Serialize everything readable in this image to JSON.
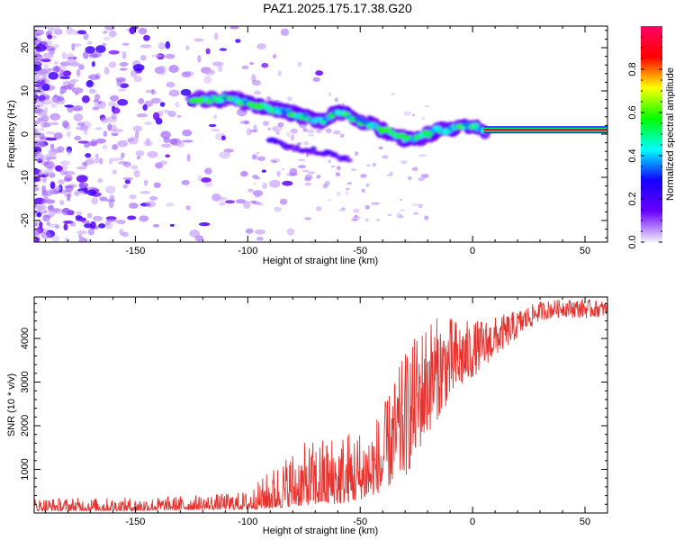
{
  "title": "PAZ1.2025.175.17.38.G20",
  "colors": {
    "snr_line": "#e8322e",
    "spectrogram_noise": "#8a4ff0",
    "colorbar_stops": [
      "#f2f0fb",
      "#6a00ff",
      "#1400ff",
      "#00ffff",
      "#00ff00",
      "#ffff00",
      "#ff0000",
      "#ff0066"
    ]
  },
  "chart_data": [
    {
      "type": "heatmap",
      "title": "PAZ1.2025.175.17.38.G20",
      "xlabel": "Height of straight line (km)",
      "ylabel": "Frequency (Hz)",
      "xlim": [
        -195,
        60
      ],
      "ylim": [
        -25,
        25
      ],
      "xticks": [
        -150,
        -100,
        -50,
        0,
        50
      ],
      "yticks": [
        -20,
        -10,
        0,
        10,
        20
      ],
      "colorbar": {
        "label": "Normalized spectral amplitude",
        "range": [
          0,
          1
        ],
        "ticks": [
          0.0,
          0.2,
          0.4,
          0.6,
          0.8
        ]
      },
      "ridge": {
        "description_points": [
          {
            "x": -125,
            "y": 8
          },
          {
            "x": -115,
            "y": 8
          },
          {
            "x": -105,
            "y": 8
          },
          {
            "x": -98,
            "y": 7
          },
          {
            "x": -90,
            "y": 6
          },
          {
            "x": -82,
            "y": 5
          },
          {
            "x": -75,
            "y": 4
          },
          {
            "x": -68,
            "y": 3
          },
          {
            "x": -60,
            "y": 5
          },
          {
            "x": -55,
            "y": 4
          },
          {
            "x": -50,
            "y": 3
          },
          {
            "x": -45,
            "y": 2
          },
          {
            "x": -40,
            "y": 1
          },
          {
            "x": -35,
            "y": 0
          },
          {
            "x": -30,
            "y": -1
          },
          {
            "x": -25,
            "y": -1
          },
          {
            "x": -20,
            "y": 0
          },
          {
            "x": -15,
            "y": 1
          },
          {
            "x": -10,
            "y": 1
          },
          {
            "x": -5,
            "y": 2
          },
          {
            "x": 0,
            "y": 2
          },
          {
            "x": 5,
            "y": 1
          },
          {
            "x": 20,
            "y": 1
          },
          {
            "x": 40,
            "y": 1
          },
          {
            "x": 60,
            "y": 1
          }
        ],
        "branch_points": [
          {
            "x": -90,
            "y": -1
          },
          {
            "x": -80,
            "y": -3
          },
          {
            "x": -70,
            "y": -4
          },
          {
            "x": -60,
            "y": -5
          },
          {
            "x": -55,
            "y": -6
          }
        ]
      }
    },
    {
      "type": "line",
      "xlabel": "Height of straight line (km)",
      "ylabel": "SNR (10 * v/v)",
      "xlim": [
        -195,
        60
      ],
      "ylim": [
        0,
        4950
      ],
      "xticks": [
        -150,
        -100,
        -50,
        0,
        50
      ],
      "yticks": [
        1000,
        2000,
        3000,
        4000
      ],
      "envelope": [
        {
          "x": -195,
          "low": 50,
          "high": 350
        },
        {
          "x": -150,
          "low": 50,
          "high": 350
        },
        {
          "x": -110,
          "low": 80,
          "high": 450
        },
        {
          "x": -100,
          "low": 80,
          "high": 500
        },
        {
          "x": -90,
          "low": 100,
          "high": 1000
        },
        {
          "x": -80,
          "low": 150,
          "high": 1500
        },
        {
          "x": -70,
          "low": 200,
          "high": 1700
        },
        {
          "x": -60,
          "low": 200,
          "high": 1900
        },
        {
          "x": -50,
          "low": 300,
          "high": 2000
        },
        {
          "x": -40,
          "low": 500,
          "high": 2400
        },
        {
          "x": -30,
          "low": 800,
          "high": 3700
        },
        {
          "x": -20,
          "low": 1800,
          "high": 4500
        },
        {
          "x": -10,
          "low": 2600,
          "high": 4500
        },
        {
          "x": 0,
          "low": 3100,
          "high": 4400
        },
        {
          "x": 10,
          "low": 3600,
          "high": 4500
        },
        {
          "x": 20,
          "low": 4000,
          "high": 4650
        },
        {
          "x": 30,
          "low": 4400,
          "high": 4850
        },
        {
          "x": 40,
          "low": 4500,
          "high": 4900
        },
        {
          "x": 50,
          "low": 4450,
          "high": 4900
        },
        {
          "x": 60,
          "low": 4500,
          "high": 4850
        }
      ]
    }
  ]
}
